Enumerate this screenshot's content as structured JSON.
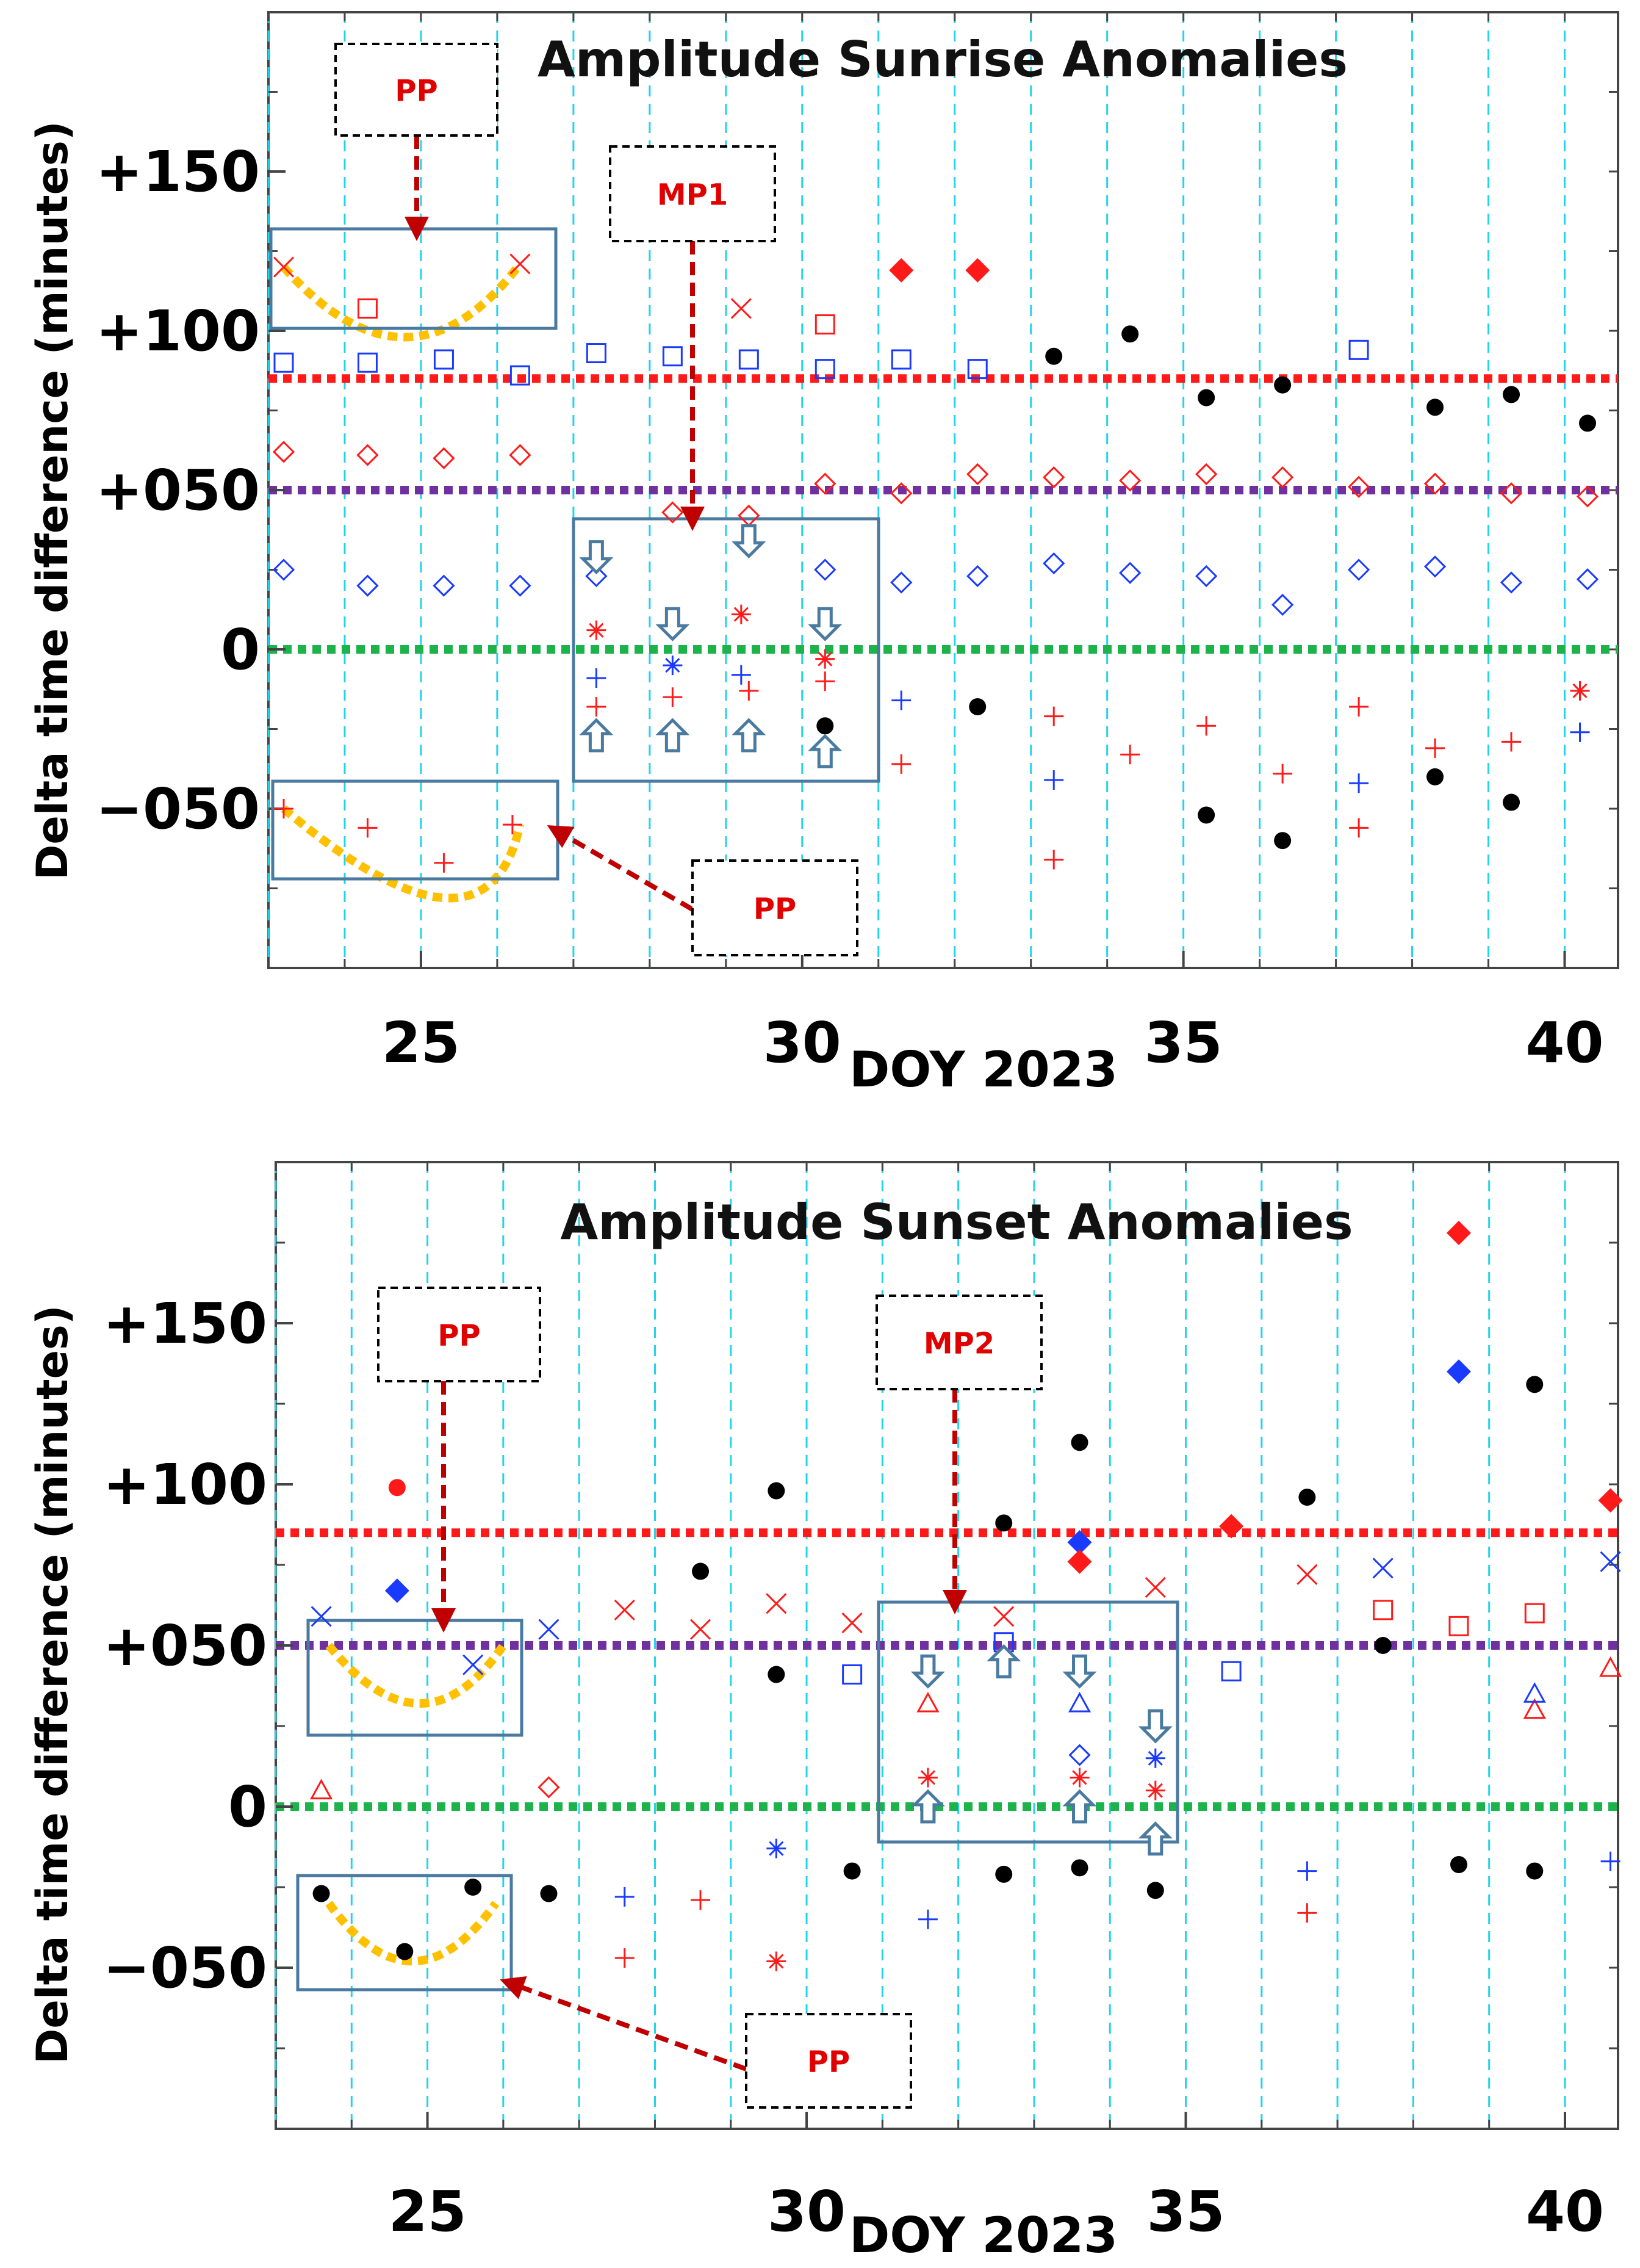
{
  "figure": {
    "ylabel": "Delta time difference (minutes)",
    "colors": {
      "grid_vertical": "#22d3ee",
      "red": "#ff1a1a",
      "blue": "#1a3aff",
      "black": "#000000",
      "threshold_upper": "#ff1a1a",
      "threshold_mid": "#7030a0",
      "baseline": "#1bb34a",
      "pp_curve": "#ffc000",
      "box": "#4a7aa0",
      "callout_arrow": "#c00000"
    }
  },
  "chart_data": [
    {
      "type": "scatter",
      "title": "Amplitude Sunrise Anomalies",
      "xlabel": "DOY 2023",
      "ylabel": "Delta time difference (minutes)",
      "xlim": [
        23,
        40.7
      ],
      "ylim": [
        -100,
        200
      ],
      "grid": "vertical dashed lines at each day",
      "xticks": [
        25,
        30,
        35,
        40
      ],
      "xtick_labels": [
        "25",
        "30",
        "35",
        "40"
      ],
      "yticks": [
        -50,
        0,
        50,
        100,
        150
      ],
      "ytick_labels": [
        "−050",
        "0",
        "+050",
        "+100",
        "+150"
      ],
      "hlines": [
        {
          "y": 85,
          "color": "#ff1a1a",
          "label": "upper threshold"
        },
        {
          "y": 50,
          "color": "#7030a0",
          "label": "middle threshold"
        },
        {
          "y": 0,
          "color": "#1bb34a",
          "label": "baseline"
        }
      ],
      "series": [
        {
          "name": "red plus",
          "marker": "plus",
          "color": "#ff1a1a",
          "points": [
            [
              23.2,
              -50
            ],
            [
              24.3,
              -56
            ],
            [
              25.3,
              -67
            ],
            [
              26.2,
              -55
            ],
            [
              27.3,
              -18
            ],
            [
              28.3,
              -15
            ],
            [
              29.3,
              -13
            ],
            [
              30.3,
              -10
            ],
            [
              31.3,
              -36
            ],
            [
              33.3,
              -21
            ],
            [
              33.3,
              -66
            ],
            [
              34.3,
              -33
            ],
            [
              35.3,
              -24
            ],
            [
              36.3,
              -39
            ],
            [
              37.3,
              -18
            ],
            [
              37.3,
              -56
            ],
            [
              38.3,
              -31
            ],
            [
              39.3,
              -29
            ]
          ]
        },
        {
          "name": "blue plus",
          "marker": "plus",
          "color": "#1a3aff",
          "points": [
            [
              27.3,
              -9
            ],
            [
              29.2,
              -8
            ],
            [
              31.3,
              -16
            ],
            [
              33.3,
              -41
            ],
            [
              37.3,
              -42
            ],
            [
              40.2,
              -26
            ]
          ]
        },
        {
          "name": "red star",
          "marker": "star",
          "color": "#ff1a1a",
          "points": [
            [
              27.3,
              6
            ],
            [
              29.2,
              11
            ],
            [
              30.3,
              -3
            ],
            [
              40.2,
              -13
            ]
          ]
        },
        {
          "name": "blue star",
          "marker": "star",
          "color": "#1a3aff",
          "points": [
            [
              28.3,
              -5
            ]
          ]
        },
        {
          "name": "red diamond",
          "marker": "diamond",
          "color": "#ff1a1a",
          "points": [
            [
              23.2,
              62
            ],
            [
              24.3,
              61
            ],
            [
              25.3,
              60
            ],
            [
              26.3,
              61
            ],
            [
              28.3,
              43
            ],
            [
              29.3,
              42
            ],
            [
              30.3,
              52
            ],
            [
              31.3,
              49
            ],
            [
              32.3,
              55
            ],
            [
              33.3,
              54
            ],
            [
              34.3,
              53
            ],
            [
              35.3,
              55
            ],
            [
              36.3,
              54
            ],
            [
              37.3,
              51
            ],
            [
              38.3,
              52
            ],
            [
              39.3,
              49
            ],
            [
              40.3,
              48
            ]
          ]
        },
        {
          "name": "blue diamond",
          "marker": "diamond",
          "color": "#1a3aff",
          "points": [
            [
              23.2,
              25
            ],
            [
              24.3,
              20
            ],
            [
              25.3,
              20
            ],
            [
              26.3,
              20
            ],
            [
              27.3,
              23
            ],
            [
              30.3,
              25
            ],
            [
              31.3,
              21
            ],
            [
              32.3,
              23
            ],
            [
              33.3,
              27
            ],
            [
              34.3,
              24
            ],
            [
              35.3,
              23
            ],
            [
              36.3,
              14
            ],
            [
              37.3,
              25
            ],
            [
              38.3,
              26
            ],
            [
              39.3,
              21
            ],
            [
              40.3,
              22
            ]
          ]
        },
        {
          "name": "blue square",
          "marker": "square",
          "color": "#1a3aff",
          "points": [
            [
              23.2,
              90
            ],
            [
              24.3,
              90
            ],
            [
              25.3,
              91
            ],
            [
              26.3,
              86
            ],
            [
              27.3,
              93
            ],
            [
              28.3,
              92
            ],
            [
              29.3,
              91
            ],
            [
              30.3,
              88
            ],
            [
              31.3,
              91
            ],
            [
              32.3,
              88
            ],
            [
              37.3,
              94
            ]
          ]
        },
        {
          "name": "red square",
          "marker": "square",
          "color": "#ff1a1a",
          "points": [
            [
              24.3,
              107
            ],
            [
              30.3,
              102
            ]
          ]
        },
        {
          "name": "red cross",
          "marker": "x",
          "color": "#ff1a1a",
          "points": [
            [
              23.2,
              120
            ],
            [
              26.3,
              121
            ],
            [
              29.2,
              107
            ]
          ]
        },
        {
          "name": "red filled diamond",
          "marker": "diamond-filled",
          "color": "#ff1a1a",
          "points": [
            [
              31.3,
              119
            ],
            [
              32.3,
              119
            ]
          ]
        },
        {
          "name": "black dot",
          "marker": "dot",
          "color": "#000000",
          "points": [
            [
              30.3,
              -24
            ],
            [
              32.3,
              -18
            ],
            [
              33.3,
              92
            ],
            [
              34.3,
              99
            ],
            [
              35.3,
              79
            ],
            [
              36.3,
              83
            ],
            [
              38.3,
              76
            ],
            [
              39.3,
              80
            ],
            [
              40.3,
              71
            ],
            [
              35.3,
              -52
            ],
            [
              36.3,
              -60
            ],
            [
              38.3,
              -40
            ],
            [
              39.3,
              -48
            ]
          ]
        }
      ],
      "annotations": [
        {
          "label": "PP",
          "kind": "callout"
        },
        {
          "label": "MP1",
          "kind": "callout"
        },
        {
          "label": "PP",
          "kind": "callout"
        }
      ]
    },
    {
      "type": "scatter",
      "title": "Amplitude Sunset Anomalies",
      "xlabel": "DOY 2023",
      "ylabel": "Delta time difference (minutes)",
      "xlim": [
        23,
        40.7
      ],
      "ylim": [
        -100,
        200
      ],
      "grid": "vertical dashed lines at each day",
      "xticks": [
        25,
        30,
        35,
        40
      ],
      "xtick_labels": [
        "25",
        "30",
        "35",
        "40"
      ],
      "yticks": [
        -50,
        0,
        50,
        100,
        150
      ],
      "ytick_labels": [
        "−050",
        "0",
        "+050",
        "+100",
        "+150"
      ],
      "hlines": [
        {
          "y": 85,
          "color": "#ff1a1a",
          "label": "upper threshold"
        },
        {
          "y": 50,
          "color": "#7030a0",
          "label": "middle threshold"
        },
        {
          "y": 0,
          "color": "#1bb34a",
          "label": "baseline"
        }
      ],
      "series": [
        {
          "name": "black dot",
          "marker": "dot",
          "color": "#000000",
          "points": [
            [
              23.6,
              -27
            ],
            [
              24.7,
              -45
            ],
            [
              25.6,
              -25
            ],
            [
              26.6,
              -27
            ],
            [
              28.6,
              73
            ],
            [
              29.6,
              98
            ],
            [
              29.6,
              41
            ],
            [
              30.6,
              -20
            ],
            [
              32.6,
              88
            ],
            [
              32.6,
              -21
            ],
            [
              33.6,
              113
            ],
            [
              33.6,
              -19
            ],
            [
              34.6,
              -26
            ],
            [
              36.6,
              96
            ],
            [
              37.6,
              50
            ],
            [
              38.6,
              -18
            ],
            [
              39.6,
              131
            ],
            [
              39.6,
              -20
            ]
          ]
        },
        {
          "name": "red filled circle",
          "marker": "dot",
          "color": "#ff1a1a",
          "points": [
            [
              24.6,
              99
            ]
          ]
        },
        {
          "name": "blue filled diamond",
          "marker": "diamond-filled",
          "color": "#1a3aff",
          "points": [
            [
              24.6,
              67
            ],
            [
              33.6,
              82
            ],
            [
              38.6,
              135
            ]
          ]
        },
        {
          "name": "red filled diamond",
          "marker": "diamond-filled",
          "color": "#ff1a1a",
          "points": [
            [
              33.6,
              76
            ],
            [
              35.6,
              87
            ],
            [
              38.6,
              178
            ],
            [
              40.6,
              95
            ]
          ]
        },
        {
          "name": "blue cross",
          "marker": "x",
          "color": "#1a3aff",
          "points": [
            [
              23.6,
              59
            ],
            [
              25.6,
              44
            ],
            [
              26.6,
              55
            ],
            [
              37.6,
              74
            ],
            [
              40.6,
              76
            ]
          ]
        },
        {
          "name": "red cross",
          "marker": "x",
          "color": "#ff1a1a",
          "points": [
            [
              27.6,
              61
            ],
            [
              28.6,
              55
            ],
            [
              29.6,
              63
            ],
            [
              30.6,
              57
            ],
            [
              32.6,
              59
            ],
            [
              34.6,
              68
            ],
            [
              36.6,
              72
            ]
          ]
        },
        {
          "name": "red triangle",
          "marker": "triangle",
          "color": "#ff1a1a",
          "points": [
            [
              23.6,
              5
            ],
            [
              31.6,
              32
            ],
            [
              39.6,
              30
            ],
            [
              40.6,
              43
            ]
          ]
        },
        {
          "name": "blue triangle",
          "marker": "triangle",
          "color": "#1a3aff",
          "points": [
            [
              33.6,
              32
            ],
            [
              39.6,
              35
            ]
          ]
        },
        {
          "name": "red diamond",
          "marker": "diamond",
          "color": "#ff1a1a",
          "points": [
            [
              26.6,
              6
            ]
          ]
        },
        {
          "name": "blue diamond",
          "marker": "diamond",
          "color": "#1a3aff",
          "points": [
            [
              33.6,
              16
            ]
          ]
        },
        {
          "name": "blue square",
          "marker": "square",
          "color": "#1a3aff",
          "points": [
            [
              30.6,
              41
            ],
            [
              32.6,
              51
            ],
            [
              35.6,
              42
            ]
          ]
        },
        {
          "name": "red square",
          "marker": "square",
          "color": "#ff1a1a",
          "points": [
            [
              37.6,
              61
            ],
            [
              38.6,
              56
            ],
            [
              39.6,
              60
            ]
          ]
        },
        {
          "name": "red star",
          "marker": "star",
          "color": "#ff1a1a",
          "points": [
            [
              31.6,
              9
            ],
            [
              33.6,
              9
            ],
            [
              34.6,
              5
            ],
            [
              29.6,
              -48
            ]
          ]
        },
        {
          "name": "blue star",
          "marker": "star",
          "color": "#1a3aff",
          "points": [
            [
              29.6,
              -13
            ],
            [
              34.6,
              15
            ]
          ]
        },
        {
          "name": "blue plus",
          "marker": "plus",
          "color": "#1a3aff",
          "points": [
            [
              27.6,
              -28
            ],
            [
              31.6,
              -35
            ],
            [
              36.6,
              -20
            ],
            [
              40.6,
              -17
            ]
          ]
        },
        {
          "name": "red plus",
          "marker": "plus",
          "color": "#ff1a1a",
          "points": [
            [
              27.6,
              -47
            ],
            [
              28.6,
              -29
            ],
            [
              36.6,
              -33
            ]
          ]
        }
      ],
      "annotations": [
        {
          "label": "PP",
          "kind": "callout"
        },
        {
          "label": "MP2",
          "kind": "callout"
        },
        {
          "label": "PP",
          "kind": "callout"
        }
      ]
    }
  ]
}
